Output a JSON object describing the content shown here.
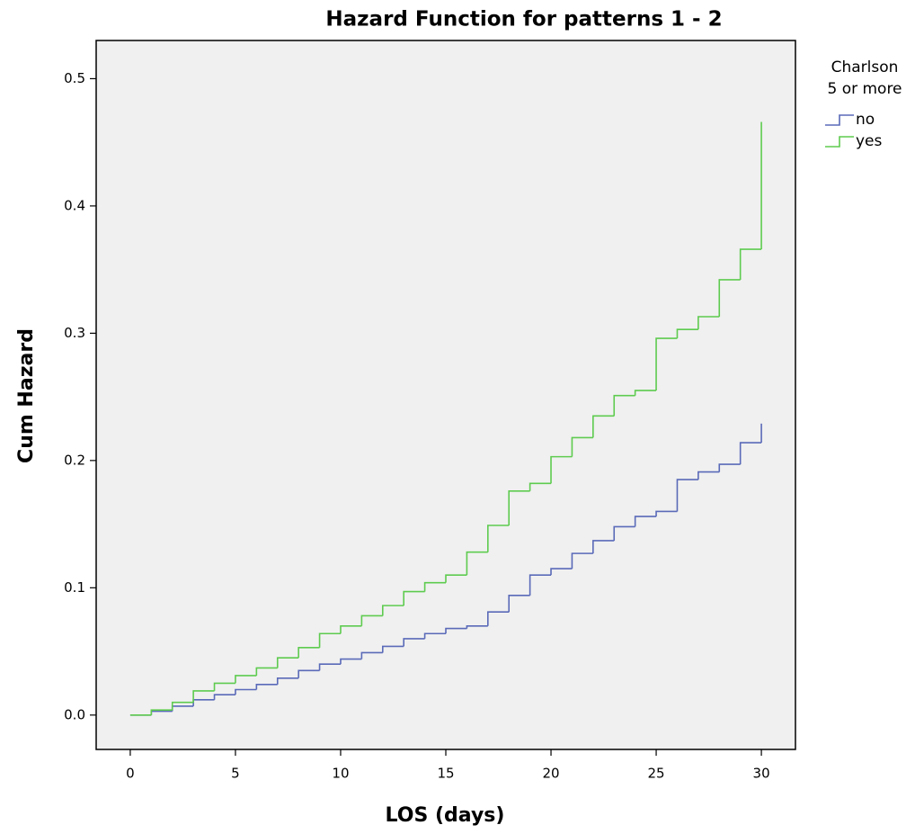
{
  "chart_data": {
    "type": "step",
    "title": "Hazard Function for patterns 1 - 2",
    "x_label": "LOS (days)",
    "y_label": "Cum Hazard",
    "legend_title": [
      "Charlson",
      "5 or more"
    ],
    "x": [
      0,
      1,
      2,
      3,
      4,
      5,
      6,
      7,
      8,
      9,
      10,
      11,
      12,
      13,
      14,
      15,
      16,
      17,
      18,
      19,
      20,
      21,
      22,
      23,
      24,
      25,
      26,
      27,
      28,
      29,
      30
    ],
    "series": [
      {
        "name": "no",
        "color": "#5a6ab8",
        "values": [
          0,
          0.003,
          0.007,
          0.012,
          0.016,
          0.02,
          0.024,
          0.029,
          0.035,
          0.04,
          0.044,
          0.049,
          0.054,
          0.06,
          0.064,
          0.068,
          0.07,
          0.081,
          0.094,
          0.11,
          0.115,
          0.127,
          0.137,
          0.148,
          0.156,
          0.16,
          0.185,
          0.191,
          0.197,
          0.214,
          0.229
        ]
      },
      {
        "name": "yes",
        "color": "#5ecb4f",
        "values": [
          0,
          0.004,
          0.01,
          0.019,
          0.025,
          0.031,
          0.037,
          0.045,
          0.053,
          0.064,
          0.07,
          0.078,
          0.086,
          0.097,
          0.104,
          0.11,
          0.128,
          0.149,
          0.176,
          0.182,
          0.203,
          0.218,
          0.235,
          0.251,
          0.255,
          0.296,
          0.303,
          0.313,
          0.342,
          0.366,
          0.466
        ]
      }
    ],
    "xlim": [
      -1.62,
      31.62
    ],
    "ylim": [
      -0.027,
      0.53
    ],
    "xticks": [
      0,
      5,
      10,
      15,
      20,
      25,
      30
    ],
    "yticks": [
      {
        "value": 0,
        "label": "0.0"
      },
      0.1,
      0.2,
      0.3,
      0.4,
      0.5
    ],
    "background": "#f0f0f0"
  }
}
